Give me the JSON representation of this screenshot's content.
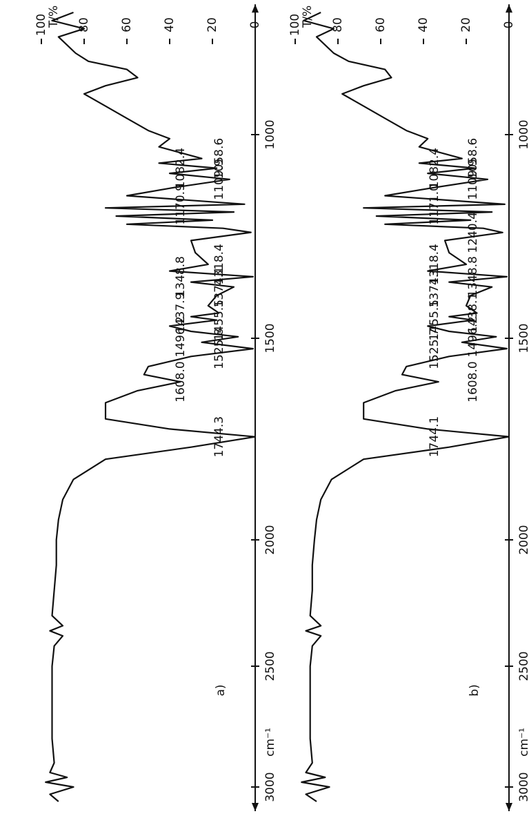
{
  "chart_data": [
    {
      "type": "line",
      "panel_label": "a)",
      "x_label": "cm⁻¹",
      "y_label": "T/%",
      "xlim": [
        680,
        3100
      ],
      "xticks": [
        1000,
        1500,
        2000,
        2500,
        3000
      ],
      "ylim": [
        0,
        100
      ],
      "yticks": [
        0,
        20,
        40,
        60,
        80,
        100
      ],
      "x": [
        700,
        720,
        740,
        760,
        780,
        800,
        820,
        840,
        860,
        880,
        900,
        930,
        960,
        990,
        1010,
        1030,
        1058.6,
        1070,
        1082.4,
        1095,
        1109.9,
        1130,
        1150,
        1170.9,
        1180,
        1190,
        1200,
        1210,
        1220,
        1230,
        1240,
        1260,
        1290,
        1318.4,
        1335,
        1348.8,
        1362,
        1374.1,
        1395,
        1420,
        1437.9,
        1447,
        1455.5,
        1470,
        1483,
        1496.2,
        1510,
        1525.8,
        1545,
        1570,
        1590,
        1608,
        1630,
        1660,
        1700,
        1725,
        1744.3,
        1770,
        1800,
        1850,
        1900,
        1950,
        2000,
        2100,
        2200,
        2300,
        2340,
        2360,
        2380,
        2420,
        2500,
        2600,
        2700,
        2800,
        2900,
        2940,
        2960,
        2980,
        3000,
        3030,
        3060
      ],
      "series": [
        {
          "color": "#111111",
          "values": [
            85,
            95,
            80,
            92,
            88,
            84,
            78,
            60,
            55,
            70,
            80,
            70,
            60,
            50,
            40,
            45,
            25,
            45,
            18,
            40,
            12,
            38,
            60,
            5,
            70,
            10,
            65,
            20,
            60,
            15,
            2,
            30,
            28,
            22,
            40,
            1,
            30,
            10,
            18,
            22,
            17,
            30,
            18,
            40,
            30,
            8,
            25,
            1,
            30,
            50,
            52,
            35,
            55,
            70,
            70,
            40,
            0,
            30,
            70,
            85,
            90,
            92,
            93,
            93,
            94,
            95,
            90,
            96,
            90,
            94,
            95,
            95,
            95,
            95,
            94,
            96,
            88,
            98,
            85,
            96,
            92
          ]
        }
      ],
      "peak_labels": [
        {
          "value": 1058.6,
          "label": "1058.6"
        },
        {
          "value": 1082.4,
          "label": "1082.4"
        },
        {
          "value": 1109.9,
          "label": "1109.9"
        },
        {
          "value": 1170.9,
          "label": "1170.9"
        },
        {
          "value": 1318.4,
          "label": "1318.4"
        },
        {
          "value": 1348.8,
          "label": "1348.8"
        },
        {
          "value": 1374.1,
          "label": "1374.1"
        },
        {
          "value": 1437.9,
          "label": "1437.9"
        },
        {
          "value": 1455.5,
          "label": "1455.5"
        },
        {
          "value": 1496.2,
          "label": "1496.2"
        },
        {
          "value": 1525.8,
          "label": "1525.8"
        },
        {
          "value": 1608.0,
          "label": "1608.0"
        },
        {
          "value": 1744.3,
          "label": "1744.3"
        }
      ]
    },
    {
      "type": "line",
      "panel_label": "b)",
      "x_label": "cm⁻¹",
      "y_label": "T/%",
      "xlim": [
        680,
        3100
      ],
      "xticks": [
        1000,
        1500,
        2000,
        2500,
        3000
      ],
      "ylim": [
        0,
        100
      ],
      "yticks": [
        0,
        20,
        40,
        60,
        80,
        100
      ],
      "x": [
        700,
        720,
        740,
        760,
        780,
        800,
        820,
        840,
        860,
        880,
        900,
        930,
        960,
        990,
        1010,
        1030,
        1058.6,
        1070,
        1082.4,
        1095,
        1109.9,
        1130,
        1150,
        1171.0,
        1180,
        1190,
        1200,
        1210,
        1220,
        1230,
        1240.4,
        1260,
        1290,
        1318.4,
        1335,
        1348.8,
        1362,
        1374.1,
        1395,
        1420,
        1438.1,
        1447,
        1455.5,
        1470,
        1483,
        1496.2,
        1510,
        1525.7,
        1545,
        1570,
        1590,
        1608,
        1630,
        1660,
        1700,
        1725,
        1744.1,
        1770,
        1800,
        1850,
        1900,
        1950,
        2000,
        2100,
        2200,
        2300,
        2340,
        2360,
        2380,
        2420,
        2500,
        2600,
        2700,
        2800,
        2900,
        2940,
        2960,
        2980,
        3000,
        3030,
        3060
      ],
      "series": [
        {
          "color": "#111111",
          "values": [
            88,
            96,
            82,
            90,
            86,
            82,
            75,
            58,
            55,
            68,
            78,
            68,
            58,
            48,
            38,
            42,
            22,
            42,
            16,
            38,
            10,
            35,
            58,
            2,
            68,
            8,
            62,
            18,
            58,
            12,
            3,
            30,
            28,
            20,
            38,
            1,
            28,
            8,
            18,
            20,
            15,
            28,
            17,
            38,
            28,
            6,
            22,
            1,
            28,
            48,
            50,
            33,
            53,
            68,
            68,
            38,
            0,
            28,
            68,
            83,
            88,
            90,
            91,
            92,
            92,
            93,
            88,
            95,
            88,
            92,
            93,
            93,
            93,
            93,
            92,
            95,
            86,
            97,
            84,
            95,
            90
          ]
        }
      ],
      "peak_labels": [
        {
          "value": 1058.6,
          "label": "1058.6"
        },
        {
          "value": 1082.4,
          "label": "1082.4"
        },
        {
          "value": 1109.9,
          "label": "1109.9"
        },
        {
          "value": 1171.0,
          "label": "1171.0"
        },
        {
          "value": 1240.4,
          "label": "1240.4"
        },
        {
          "value": 1318.4,
          "label": "1318.4"
        },
        {
          "value": 1348.8,
          "label": "1348.8"
        },
        {
          "value": 1374.1,
          "label": "1374.1"
        },
        {
          "value": 1438.1,
          "label": "1438.1"
        },
        {
          "value": 1455.5,
          "label": "1455.5"
        },
        {
          "value": 1496.2,
          "label": "1496.2"
        },
        {
          "value": 1525.7,
          "label": "1525.7"
        },
        {
          "value": 1608.0,
          "label": "1608.0"
        },
        {
          "value": 1744.1,
          "label": "1744.1"
        }
      ]
    }
  ]
}
